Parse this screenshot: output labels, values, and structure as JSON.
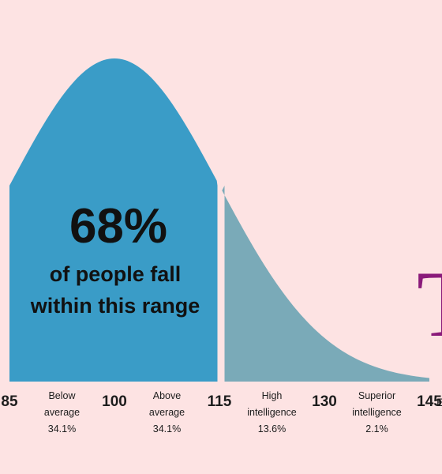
{
  "chart_data": {
    "type": "area",
    "title": "",
    "xlabel": "",
    "ylabel": "",
    "xlim": [
      85,
      145
    ],
    "distribution": {
      "kind": "normal",
      "mean": 100,
      "sd": 15
    },
    "x_ticks": [
      "85",
      "100",
      "115",
      "130",
      "145"
    ],
    "bands": [
      {
        "from": 85,
        "to": 100,
        "label_lines": [
          "Below",
          "average"
        ],
        "percent": "34.1%",
        "color": "#3a9cc7"
      },
      {
        "from": 100,
        "to": 115,
        "label_lines": [
          "Above",
          "average"
        ],
        "percent": "34.1%",
        "color": "#3a9cc7"
      },
      {
        "from": 115,
        "to": 130,
        "label_lines": [
          "High",
          "intelligence"
        ],
        "percent": "13.6%",
        "color": "#7aaab8"
      },
      {
        "from": 130,
        "to": 145,
        "label_lines": [
          "Superior",
          "intelligence"
        ],
        "percent": "2.1%",
        "color": "#7aaab8"
      }
    ],
    "annotation": {
      "headline": "68%",
      "lines": [
        "of people fall",
        "within this range"
      ]
    },
    "right_edge_fragment": "Ex"
  },
  "decor": {
    "glyph": "T",
    "color": "#8a1a7a"
  }
}
